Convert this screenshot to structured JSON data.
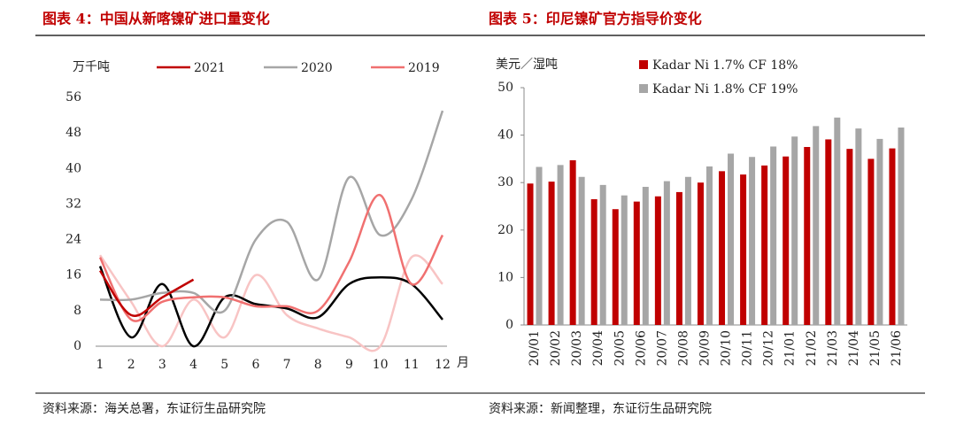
{
  "chart_data": [
    {
      "type": "line",
      "title": "图表 4：中国从新喀镍矿进口量变化",
      "source": "资料来源：海关总署，东证衍生品研究院",
      "y_label": "万千吨",
      "x_label": "月",
      "categories": [
        "1",
        "2",
        "3",
        "4",
        "5",
        "6",
        "7",
        "8",
        "9",
        "10",
        "11",
        "12"
      ],
      "ylim": [
        0,
        56
      ],
      "yticks": [
        0,
        8,
        16,
        24,
        32,
        40,
        48,
        56
      ],
      "series": [
        {
          "name": "2021",
          "color": "#c00000",
          "values": [
            17,
            7,
            11,
            15,
            null,
            null,
            null,
            null,
            null,
            null,
            null,
            null
          ]
        },
        {
          "name": "2020",
          "color": "#a6a6a6",
          "values": [
            10.5,
            10.5,
            12,
            12,
            8,
            24,
            28,
            15,
            38,
            25,
            33,
            53
          ]
        },
        {
          "name": "2019",
          "color": "#f07070",
          "values": [
            20,
            6,
            10,
            11,
            11,
            9,
            9,
            8,
            19,
            34,
            14,
            25
          ]
        },
        {
          "color": "#000000",
          "values": [
            18,
            2,
            14,
            0,
            11,
            9.5,
            8.5,
            6.5,
            14,
            15.5,
            14,
            6
          ]
        },
        {
          "color": "#f8c4c4",
          "values": [
            20.5,
            10,
            0,
            10.5,
            2,
            16,
            7,
            4,
            2,
            0,
            20,
            14
          ]
        }
      ]
    },
    {
      "type": "bar",
      "title": "图表 5：印尼镍矿官方指导价变化",
      "source": "资料来源：新闻整理，东证衍生品研究院",
      "y_label": "美元／湿吨",
      "categories": [
        "20/01",
        "20/02",
        "20/03",
        "20/04",
        "20/05",
        "20/06",
        "20/07",
        "20/08",
        "20/09",
        "20/10",
        "20/11",
        "20/12",
        "21/01",
        "21/02",
        "21/03",
        "21/04",
        "21/05",
        "21/06"
      ],
      "ylim": [
        0,
        50
      ],
      "yticks": [
        0,
        10,
        20,
        30,
        40,
        50
      ],
      "series": [
        {
          "name": "Kadar Ni 1.7% CF 18%",
          "color": "#c00000",
          "values": [
            29.8,
            30.2,
            34.7,
            26.5,
            24.4,
            26,
            27.1,
            28,
            30,
            32.4,
            31.7,
            33.6,
            35.5,
            37.5,
            39.1,
            37.1,
            35,
            37.2
          ]
        },
        {
          "name": "Kadar Ni 1.8% CF 19%",
          "color": "#a6a6a6",
          "values": [
            33.3,
            33.7,
            31.2,
            29.5,
            27.3,
            29.1,
            30.3,
            31.2,
            33.4,
            36.1,
            35.4,
            37.6,
            39.7,
            41.9,
            43.7,
            41.4,
            39.2,
            41.6
          ]
        }
      ]
    }
  ]
}
